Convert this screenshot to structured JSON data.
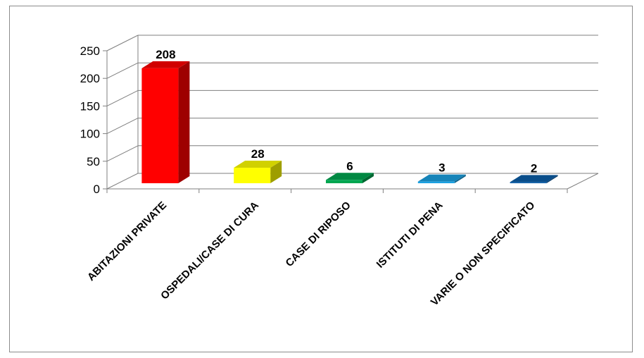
{
  "chart_data": {
    "type": "bar",
    "style": "3d-column",
    "categories": [
      "ABITAZIONI PRIVATE",
      "OSPEDALI/CASE DI CURA",
      "CASE DI RIPOSO",
      "ISTITUTI DI PENA",
      "VARIE O NON SPECIFICATO"
    ],
    "values": [
      208,
      28,
      6,
      3,
      2
    ],
    "data_labels": [
      "208",
      "28",
      "6",
      "3",
      "2"
    ],
    "colors": [
      "#ff0000",
      "#ffff00",
      "#00a650",
      "#1ba1e2",
      "#0b5ea8"
    ],
    "ylim": [
      0,
      250
    ],
    "yticks": [
      0,
      50,
      100,
      150,
      200,
      250
    ],
    "ytick_labels": [
      "0",
      "50",
      "100",
      "150",
      "200",
      "250"
    ],
    "grid": true,
    "legend": "none",
    "title": "",
    "xlabel": "",
    "ylabel": ""
  }
}
